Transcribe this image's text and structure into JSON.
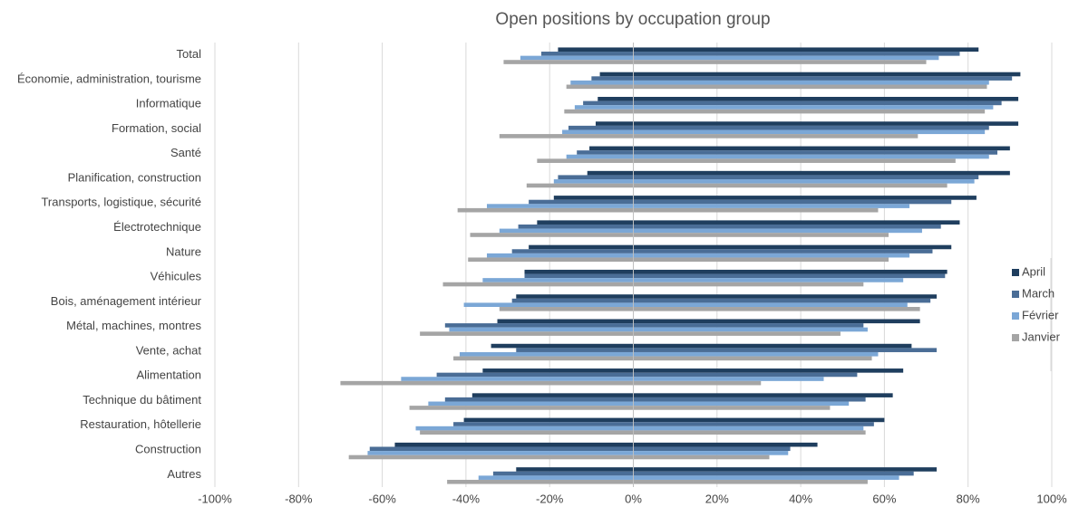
{
  "chart_data": {
    "type": "diverging-bar",
    "title": "Open positions by occupation group",
    "categories": [
      "Total",
      "Économie, administration, tourisme",
      "Informatique",
      "Formation, social",
      "Santé",
      "Planification, construction",
      "Transports, logistique, sécurité",
      "Électrotechnique",
      "Nature",
      "Véhicules",
      "Bois, aménagement intérieur",
      "Métal, machines, montres",
      "Vente, achat",
      "Alimentation",
      "Technique du bâtiment",
      "Restauration, hôtellerie",
      "Construction",
      "Autres"
    ],
    "series": [
      {
        "name": "April",
        "color": "#1f3e5e",
        "values": [
          82.5,
          92.5,
          92,
          92,
          90,
          90,
          82,
          78,
          76,
          75,
          72.5,
          68.5,
          66.5,
          64.5,
          62,
          60,
          44,
          72.5
        ],
        "negative": [
          -18,
          -8,
          -8.5,
          -9,
          -10.5,
          -11,
          -19,
          -23,
          -25,
          -26,
          -28,
          -32.5,
          -34,
          -36,
          -38.5,
          -40.5,
          -57,
          -28
        ]
      },
      {
        "name": "March",
        "color": "#4a6d96",
        "values": [
          78,
          90.5,
          88,
          85,
          87,
          82.5,
          76,
          73.5,
          71.5,
          74.5,
          71,
          55,
          72.5,
          53.5,
          55.5,
          57.5,
          37.5,
          67
        ],
        "negative": [
          -22,
          -10,
          -12,
          -15.5,
          -13.5,
          -18,
          -25,
          -27.5,
          -29,
          -26,
          -29,
          -45,
          -28,
          -47,
          -45,
          -43,
          -63,
          -33.5
        ]
      },
      {
        "name": "Février",
        "color": "#7ba7d6",
        "values": [
          73,
          85,
          86,
          84,
          85,
          81.5,
          66,
          69,
          66,
          64.5,
          65.5,
          56,
          58.5,
          45.5,
          51.5,
          55,
          37,
          63.5
        ],
        "negative": [
          -27,
          -15,
          -14,
          -17,
          -16,
          -19,
          -35,
          -32,
          -35,
          -36,
          -40.5,
          -44,
          -41.5,
          -55.5,
          -49,
          -52,
          -63.5,
          -37
        ]
      },
      {
        "name": "Janvier",
        "color": "#a5a5a5",
        "values": [
          70,
          84.5,
          84,
          68,
          77,
          75,
          58.5,
          61,
          61,
          55,
          68.5,
          49.5,
          57,
          30.5,
          47,
          55.5,
          32.5,
          56
        ],
        "negative": [
          -31,
          -16,
          -16.5,
          -32,
          -23,
          -25.5,
          -42,
          -39,
          -39.5,
          -45.5,
          -32,
          -51,
          -43,
          -70,
          -53.5,
          -51,
          -68,
          -44.5
        ]
      }
    ],
    "xlim": [
      -100,
      100
    ],
    "xticks": [
      {
        "value": -100,
        "label": "-100%"
      },
      {
        "value": -80,
        "label": "-80%"
      },
      {
        "value": -60,
        "label": "-60%"
      },
      {
        "value": -40,
        "label": "-40%"
      },
      {
        "value": -20,
        "label": "-20%"
      },
      {
        "value": 0,
        "label": "0%"
      },
      {
        "value": 20,
        "label": "20%"
      },
      {
        "value": 40,
        "label": "40%"
      },
      {
        "value": 60,
        "label": "60%"
      },
      {
        "value": 80,
        "label": "80%"
      },
      {
        "value": 100,
        "label": "100%"
      }
    ],
    "grid": true,
    "legend": "right"
  }
}
